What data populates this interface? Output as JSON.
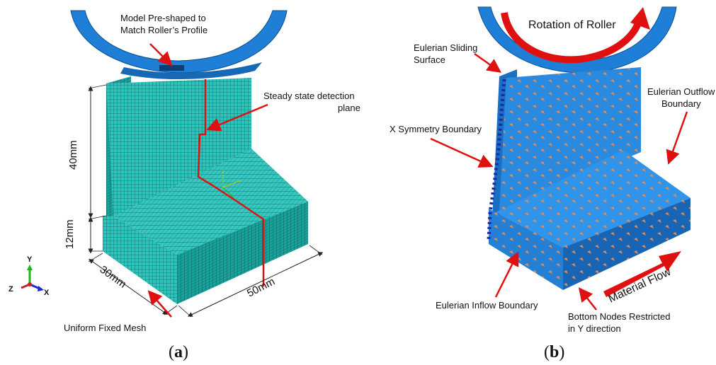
{
  "panel_a": {
    "caption": {
      "open": "(",
      "letter": "a",
      "close": ")"
    },
    "label_preshaped_1": "Model Pre-shaped to",
    "label_preshaped_2": "Match Roller’s Profile",
    "label_steady_1": "Steady state detection",
    "label_steady_2": "plane",
    "label_mesh": "Uniform Fixed Mesh",
    "dim_40": "40mm",
    "dim_12": "12mm",
    "dim_30": "30mm",
    "dim_50": "50mm",
    "triad": {
      "y": "Y",
      "z": "Z",
      "x": "X"
    }
  },
  "panel_b": {
    "caption": {
      "open": "(",
      "letter": "b",
      "close": ")"
    },
    "title_rotation": "Rotation of Roller",
    "label_sliding_1": "Eulerian Sliding",
    "label_sliding_2": "Surface",
    "label_outflow_1": "Eulerian Outflow",
    "label_outflow_2": "Boundary",
    "label_xsym": "X Symmetry Boundary",
    "label_inflow": "Eulerian Inflow Boundary",
    "label_bottom_1": "Bottom Nodes Restricted",
    "label_bottom_2": "in Y direction",
    "label_flow": "Material Flow"
  },
  "colors": {
    "mesh": "#2bbfb6",
    "mesh_line": "#0e6d68",
    "roller": "#1f7fd6",
    "solid_b": "#2a8ae0",
    "arrow_red": "#e01010",
    "node_orange": "#e08a55"
  }
}
